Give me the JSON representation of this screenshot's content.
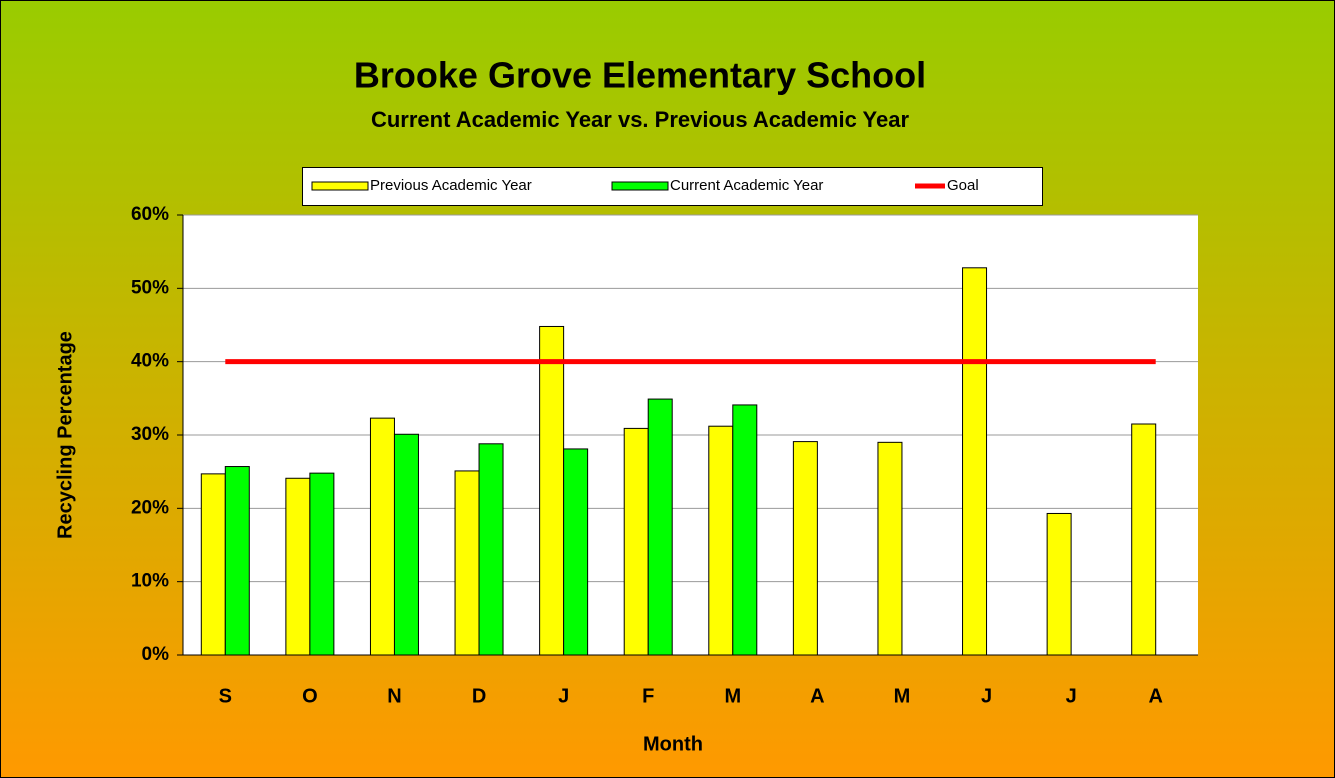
{
  "chart_data": {
    "type": "bar",
    "title": "Brooke Grove Elementary School",
    "subtitle": "Current Academic Year vs. Previous Academic Year",
    "xlabel": "Month",
    "ylabel": "Recycling Percentage",
    "categories": [
      "S",
      "O",
      "N",
      "D",
      "J",
      "F",
      "M",
      "A",
      "M",
      "J",
      "J",
      "A"
    ],
    "series": [
      {
        "name": "Previous Academic Year",
        "color": "#ffff00",
        "values": [
          24.7,
          24.1,
          32.3,
          25.1,
          44.8,
          30.9,
          31.2,
          29.1,
          29.0,
          52.8,
          19.3,
          31.5
        ]
      },
      {
        "name": "Current Academic Year",
        "color": "#00ff00",
        "values": [
          25.7,
          24.8,
          30.1,
          28.8,
          28.1,
          34.9,
          34.1,
          null,
          null,
          null,
          null,
          null
        ]
      },
      {
        "name": "Goal",
        "color": "#ff0000",
        "type": "line",
        "values": [
          40,
          40,
          40,
          40,
          40,
          40,
          40,
          40,
          40,
          40,
          40,
          40
        ]
      }
    ],
    "ylim": [
      0,
      60
    ],
    "yticks": [
      {
        "value": 0,
        "label": "0%"
      },
      {
        "value": 10,
        "label": "10%"
      },
      {
        "value": 20,
        "label": "20%"
      },
      {
        "value": 30,
        "label": "30%"
      },
      {
        "value": 40,
        "label": "40%"
      },
      {
        "value": 50,
        "label": "50%"
      },
      {
        "value": 60,
        "label": "60%"
      }
    ],
    "grid": true,
    "legend": "top"
  }
}
